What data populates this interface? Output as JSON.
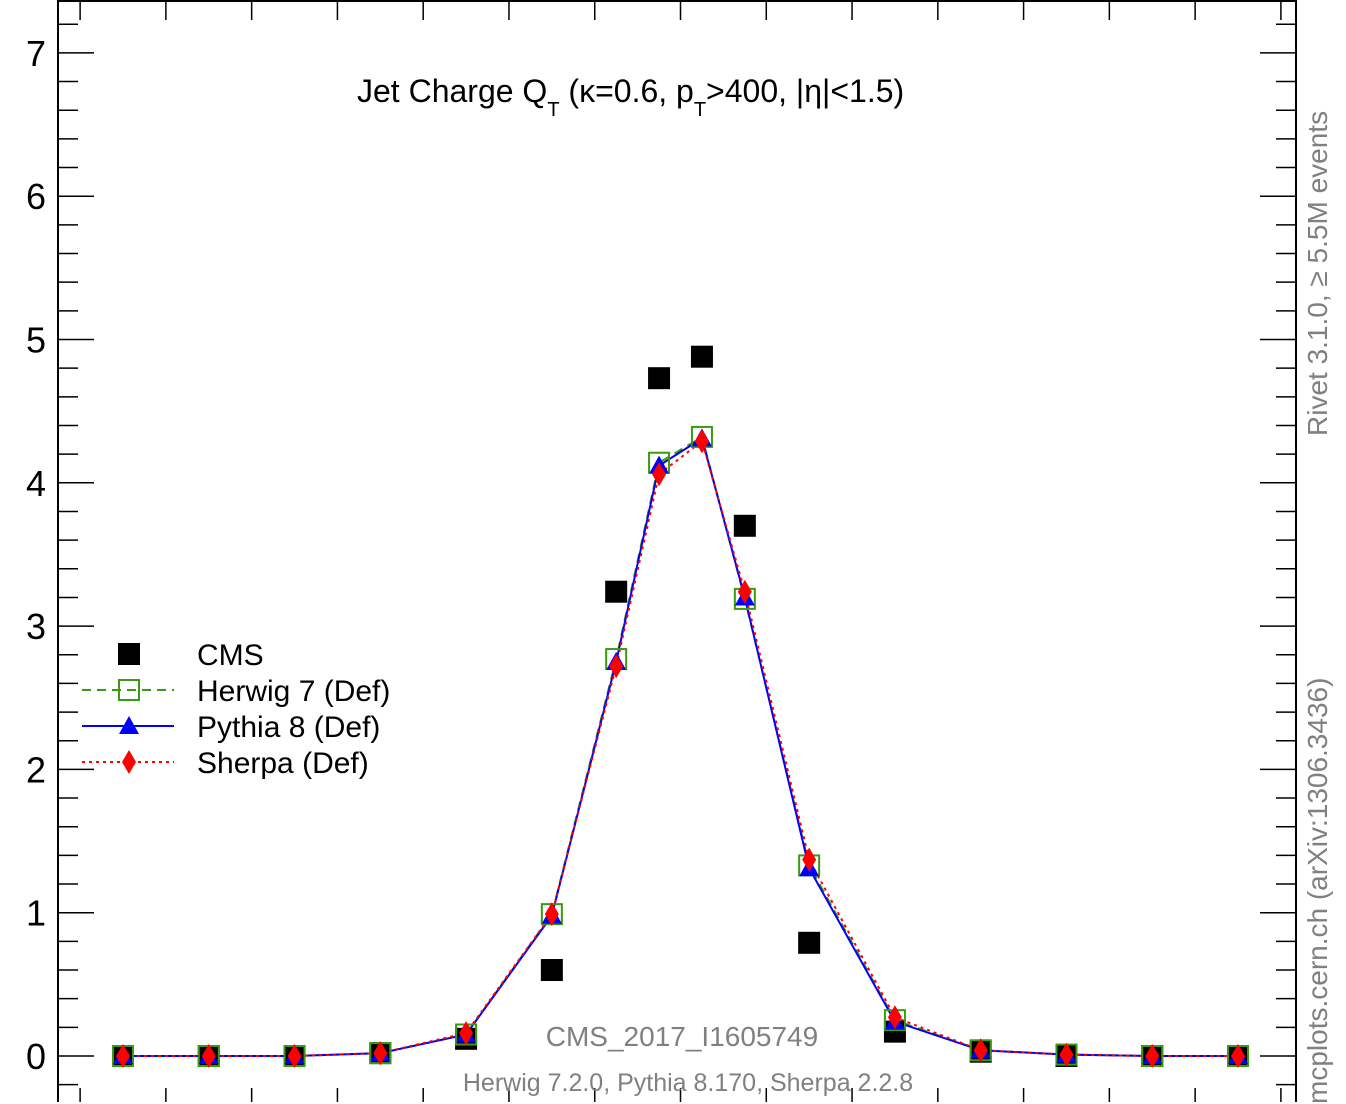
{
  "chart_data": {
    "type": "line",
    "title": "Jet Charge Q_T (κ=0.6, p_T>400, |η|<1.5)",
    "title_parts": {
      "prefix": "Jet Charge Q",
      "sub1": "T",
      "mid": " (κ=0.6, p",
      "sub2": "T",
      "suffix": ">400, |η|<1.5)"
    },
    "xlabel": "",
    "ylabel": "",
    "ylim": [
      -0.25,
      7.35
    ],
    "y_ticks": [
      "0",
      "1",
      "2",
      "3",
      "4",
      "5",
      "6",
      "7"
    ],
    "grid": false,
    "legend_position": "left-middle",
    "x": [
      1,
      2,
      3,
      4,
      5,
      6,
      6.75,
      7.25,
      7.75,
      8.25,
      9,
      10,
      11,
      12,
      13,
      14
    ],
    "series": [
      {
        "name": "CMS",
        "style": "marker",
        "marker": "square-filled",
        "color": "#000000",
        "values": [
          0.0,
          0.0,
          0.0,
          0.02,
          0.12,
          0.6,
          3.24,
          4.73,
          4.88,
          3.7,
          0.79,
          0.17,
          0.03,
          0.0,
          0.0,
          0.0
        ]
      },
      {
        "name": "Herwig 7 (Def)",
        "style": "dashed",
        "marker": "square-open",
        "color": "#3a9a12",
        "values": [
          0.0,
          0.0,
          0.0,
          0.02,
          0.15,
          0.99,
          2.77,
          4.14,
          4.32,
          3.19,
          1.33,
          0.25,
          0.04,
          0.01,
          0.0,
          0.0
        ]
      },
      {
        "name": "Pythia 8 (Def)",
        "style": "solid",
        "marker": "triangle-filled",
        "color": "#0000ff",
        "values": [
          0.0,
          0.0,
          0.0,
          0.02,
          0.15,
          0.98,
          2.75,
          4.12,
          4.31,
          3.2,
          1.31,
          0.24,
          0.04,
          0.01,
          0.0,
          0.0
        ]
      },
      {
        "name": "Sherpa (Def)",
        "style": "dotted",
        "marker": "diamond-filled",
        "color": "#ff0000",
        "values": [
          0.0,
          0.0,
          0.0,
          0.02,
          0.16,
          0.99,
          2.72,
          4.06,
          4.29,
          3.24,
          1.37,
          0.27,
          0.04,
          0.01,
          0.0,
          0.0
        ]
      }
    ],
    "annotations": {
      "analysis_id": "CMS_2017_I1605749",
      "generators": "Herwig 7.2.0, Pythia 8.170, Sherpa 2.2.8"
    }
  },
  "side_labels": {
    "rivet": "Rivet 3.1.0, ≥ 5.5M events",
    "mcplots": "mcplots.cern.ch (arXiv:1306.3436)"
  }
}
